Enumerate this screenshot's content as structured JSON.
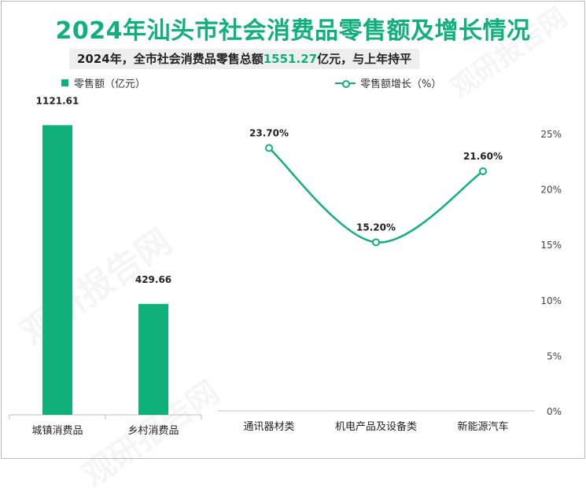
{
  "header": {
    "title": "2024年汕头市社会消费品零售额及增长情况",
    "subtitle_prefix": "2024年，全市社会消费品零售总额",
    "subtitle_value": "1551.27",
    "subtitle_suffix": "亿元，与上年持平"
  },
  "watermark": "观研报告网",
  "colors": {
    "accent": "#10b07a",
    "axis": "#bfbfbf",
    "text": "#222222"
  },
  "chart_data": [
    {
      "type": "bar",
      "categories": [
        "城镇消费品",
        "乡村消费品"
      ],
      "series": [
        {
          "name": "零售额（亿元）",
          "values": [
            1121.61,
            429.66
          ]
        }
      ],
      "value_labels": [
        "1121.61",
        "429.66"
      ],
      "ylim": [
        0,
        1150
      ],
      "grid": false
    },
    {
      "type": "line",
      "categories": [
        "通讯器材类",
        "机电产品及设备类",
        "新能源汽车"
      ],
      "series": [
        {
          "name": "零售额增长（%）",
          "values": [
            23.7,
            15.2,
            21.6
          ]
        }
      ],
      "value_labels": [
        "23.70%",
        "15.20%",
        "21.60%"
      ],
      "y_ticks": [
        "0%",
        "5%",
        "10%",
        "15%",
        "20%",
        "25%"
      ],
      "ylim": [
        0,
        25
      ],
      "grid": false
    }
  ]
}
